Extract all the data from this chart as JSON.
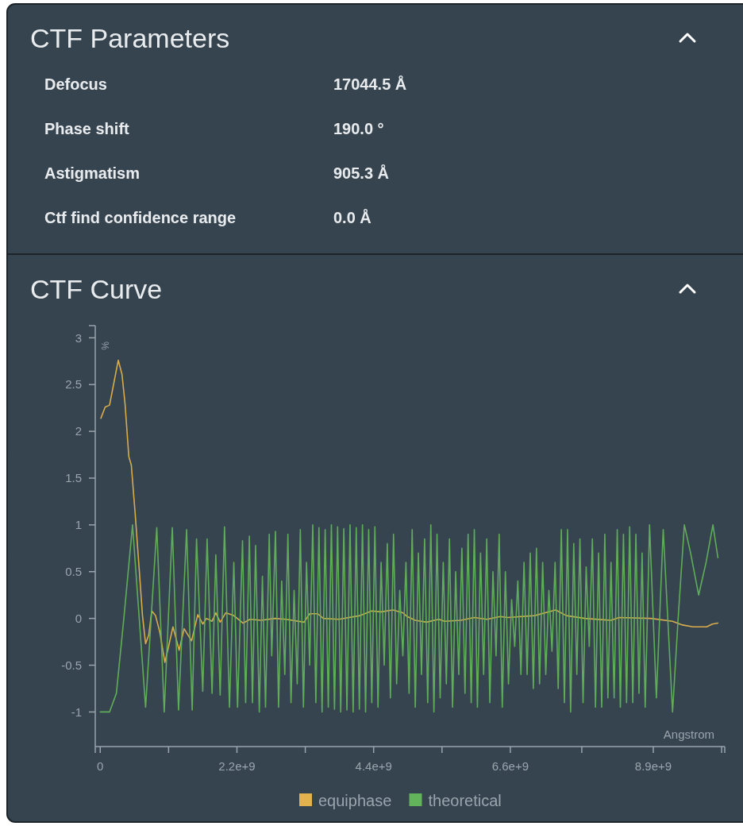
{
  "chart_data": [
    {
      "type": "other",
      "title": "CTF Parameters",
      "annotations": [
        "Defocus",
        "17044.5 Å",
        "Phase shift",
        "190.0 °",
        "Astigmatism",
        "905.3 Å",
        "Ctf find confidence range",
        "0.0 Å"
      ]
    },
    {
      "type": "line",
      "title": "CTF Curve",
      "xlabel": "Angstrom",
      "ylabel": "%",
      "xlim": [
        -80000000.0,
        10050000000.0
      ],
      "ylim": [
        -1.37,
        3.13
      ],
      "xticks": [
        {
          "value": 0,
          "label": "0"
        },
        {
          "value": 1100000000.0,
          "label": null
        },
        {
          "value": 2200000000.0,
          "label": "2.2e+9"
        },
        {
          "value": 3300000000.0,
          "label": null
        },
        {
          "value": 4400000000.0,
          "label": "4.4e+9"
        },
        {
          "value": 5500000000.0,
          "label": null
        },
        {
          "value": 6600000000.0,
          "label": "6.6e+9"
        },
        {
          "value": 7750000000.0,
          "label": null
        },
        {
          "value": 8900000000.0,
          "label": "8.9e+9"
        },
        {
          "value": 10000000000.0,
          "label": null
        }
      ],
      "yticks": [
        -1,
        -0.5,
        0,
        0.5,
        1,
        1.5,
        2,
        2.5,
        3
      ],
      "grid": false,
      "legend": "bottom",
      "marker": "none",
      "line_style": "solid",
      "series": [
        {
          "name": "equiphase",
          "color": "#e2b24c",
          "x": [
            10000000.0,
            80000000.0,
            150000000.0,
            290000000.0,
            350000000.0,
            400000000.0,
            460000000.0,
            500000000.0,
            560000000.0,
            630000000.0,
            680000000.0,
            730000000.0,
            780000000.0,
            830000000.0,
            890000000.0,
            960000000.0,
            1040000000.0,
            1090000000.0,
            1170000000.0,
            1270000000.0,
            1350000000.0,
            1470000000.0,
            1570000000.0,
            1650000000.0,
            1710000000.0,
            1800000000.0,
            1860000000.0,
            1930000000.0,
            2020000000.0,
            2150000000.0,
            2300000000.0,
            2410000000.0,
            2590000000.0,
            2810000000.0,
            2990000000.0,
            3280000000.0,
            3370000000.0,
            3500000000.0,
            3590000000.0,
            3840000000.0,
            4180000000.0,
            4370000000.0,
            4520000000.0,
            4710000000.0,
            4870000000.0,
            4940000000.0,
            5070000000.0,
            5250000000.0,
            5450000000.0,
            5540000000.0,
            5800000000.0,
            6020000000.0,
            6220000000.0,
            6440000000.0,
            6560000000.0,
            6990000000.0,
            7330000000.0,
            7500000000.0,
            7800000000.0,
            8220000000.0,
            8350000000.0,
            8860000000.0,
            9210000000.0,
            9370000000.0,
            9540000000.0,
            9760000000.0,
            9850000000.0,
            9940000000.0
          ],
          "values": [
            2.14,
            2.26,
            2.28,
            2.76,
            2.61,
            2.29,
            1.73,
            1.64,
            1.14,
            0.5,
            0.03,
            -0.27,
            -0.18,
            0.08,
            0.03,
            -0.15,
            -0.47,
            -0.33,
            -0.09,
            -0.34,
            -0.11,
            -0.24,
            0.04,
            -0.06,
            0,
            -0.03,
            0.06,
            -0.04,
            0.06,
            0.03,
            -0.05,
            -0.01,
            -0.02,
            0,
            -0.01,
            -0.04,
            0.05,
            0.05,
            0,
            -0.01,
            0.03,
            0.08,
            0.07,
            0.09,
            0.06,
            0.02,
            -0.02,
            -0.04,
            -0.01,
            -0.03,
            -0.02,
            0.01,
            -0.01,
            0.02,
            0.01,
            0.03,
            0.09,
            0.03,
            0,
            -0.02,
            0.01,
            0,
            -0.03,
            -0.07,
            -0.09,
            -0.09,
            -0.06,
            -0.05
          ]
        },
        {
          "name": "theoretical",
          "color": "#62b35a",
          "x": [
            0,
            150000000.0,
            260000000.0,
            380000000.0,
            520000000.0,
            730000000.0,
            910000000.0,
            1030000000.0,
            1160000000.0,
            1260000000.0,
            1390000000.0,
            1480000000.0,
            1550000000.0,
            1650000000.0,
            1720000000.0,
            1800000000.0,
            1860000000.0,
            1930000000.0,
            2000000000.0,
            2080000000.0,
            2150000000.0,
            2210000000.0,
            2290000000.0,
            2340000000.0,
            2400000000.0,
            2450000000.0,
            2500000000.0,
            2560000000.0,
            2610000000.0,
            2660000000.0,
            2720000000.0,
            2760000000.0,
            2820000000.0,
            2870000000.0,
            2920000000.0,
            2970000000.0,
            3020000000.0,
            3070000000.0,
            3120000000.0,
            3170000000.0,
            3220000000.0,
            3270000000.0,
            3320000000.0,
            3370000000.0,
            3420000000.0,
            3470000000.0,
            3520000000.0,
            3570000000.0,
            3620000000.0,
            3670000000.0,
            3720000000.0,
            3770000000.0,
            3820000000.0,
            3870000000.0,
            3920000000.0,
            3970000000.0,
            4020000000.0,
            4070000000.0,
            4120000000.0,
            4170000000.0,
            4220000000.0,
            4270000000.0,
            4320000000.0,
            4370000000.0,
            4420000000.0,
            4470000000.0,
            4520000000.0,
            4570000000.0,
            4620000000.0,
            4670000000.0,
            4720000000.0,
            4770000000.0,
            4820000000.0,
            4870000000.0,
            4920000000.0,
            4970000000.0,
            5020000000.0,
            5070000000.0,
            5120000000.0,
            5170000000.0,
            5220000000.0,
            5270000000.0,
            5320000000.0,
            5370000000.0,
            5420000000.0,
            5470000000.0,
            5520000000.0,
            5570000000.0,
            5620000000.0,
            5670000000.0,
            5720000000.0,
            5770000000.0,
            5820000000.0,
            5870000000.0,
            5920000000.0,
            5970000000.0,
            6020000000.0,
            6070000000.0,
            6120000000.0,
            6170000000.0,
            6220000000.0,
            6270000000.0,
            6320000000.0,
            6370000000.0,
            6420000000.0,
            6470000000.0,
            6520000000.0,
            6570000000.0,
            6620000000.0,
            6670000000.0,
            6720000000.0,
            6770000000.0,
            6820000000.0,
            6870000000.0,
            6920000000.0,
            6970000000.0,
            7020000000.0,
            7070000000.0,
            7120000000.0,
            7170000000.0,
            7220000000.0,
            7270000000.0,
            7320000000.0,
            7370000000.0,
            7420000000.0,
            7470000000.0,
            7520000000.0,
            7570000000.0,
            7620000000.0,
            7670000000.0,
            7720000000.0,
            7770000000.0,
            7820000000.0,
            7870000000.0,
            7920000000.0,
            7970000000.0,
            8020000000.0,
            8070000000.0,
            8120000000.0,
            8170000000.0,
            8220000000.0,
            8270000000.0,
            8320000000.0,
            8370000000.0,
            8420000000.0,
            8470000000.0,
            8520000000.0,
            8570000000.0,
            8620000000.0,
            8670000000.0,
            8720000000.0,
            8770000000.0,
            8840000000.0,
            8950000000.0,
            9060000000.0,
            9210000000.0,
            9300000000.0,
            9400000000.0,
            9500000000.0,
            9630000000.0,
            9750000000.0,
            9860000000.0,
            9940000000.0
          ],
          "values": [
            -1,
            -1,
            -0.8,
            0,
            1,
            -0.95,
            0.97,
            -1,
            0.97,
            -0.98,
            0.95,
            -0.98,
            0.85,
            -0.78,
            0.85,
            -0.8,
            0.68,
            -0.82,
            0.98,
            -0.95,
            0.6,
            -0.95,
            0.83,
            -0.9,
            0.88,
            -0.9,
            0.78,
            -1,
            0.45,
            -0.95,
            0.9,
            -0.4,
            0.93,
            -0.95,
            0.4,
            -0.6,
            0.9,
            -0.9,
            0.3,
            -0.7,
            0.95,
            -0.95,
            0.6,
            -0.5,
            1,
            -0.9,
            0.97,
            -1,
            0.95,
            -0.95,
            1,
            -0.97,
            0.98,
            -1,
            0.96,
            -0.98,
            1,
            -1,
            0.97,
            -0.97,
            1,
            -1,
            0.95,
            -0.9,
            0.98,
            -0.95,
            0.6,
            -0.5,
            0.8,
            -0.85,
            0.9,
            -0.7,
            0.3,
            -0.4,
            0.6,
            -0.8,
            0.95,
            -0.95,
            0.7,
            -0.6,
            0.85,
            -0.9,
            1,
            -1,
            0.9,
            -0.85,
            0.6,
            -0.7,
            0.85,
            -0.95,
            0.5,
            -0.6,
            0.75,
            -0.8,
            0.9,
            -0.9,
            0.95,
            -0.95,
            0.7,
            -0.6,
            0.85,
            -0.9,
            0.5,
            -0.4,
            0.9,
            -0.95,
            0.5,
            -0.7,
            0.2,
            -0.3,
            0.4,
            -0.6,
            0.6,
            -0.6,
            0.7,
            -0.75,
            0.75,
            -0.7,
            0.6,
            -0.6,
            0.3,
            -0.35,
            0.6,
            -0.75,
            0.95,
            -0.9,
            0.95,
            -1,
            0.8,
            -0.6,
            0.85,
            -0.9,
            0.55,
            -0.3,
            0.85,
            -0.95,
            0.7,
            -0.95,
            0.9,
            -0.85,
            0.6,
            -0.85,
            0.95,
            -0.95,
            0.9,
            -0.9,
            0.98,
            -0.9,
            0.9,
            -0.8,
            0.7,
            -0.95,
            1,
            -0.85,
            0.95,
            -1,
            0,
            1,
            0.7,
            0.25,
            0.6,
            1,
            0.65
          ]
        }
      ]
    }
  ]
}
